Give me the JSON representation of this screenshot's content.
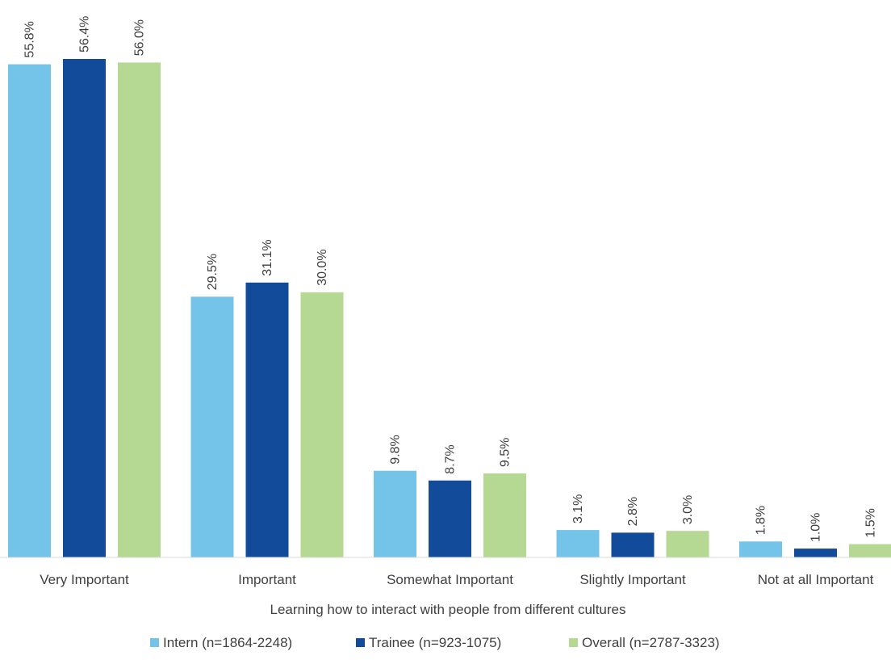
{
  "chart_data": {
    "type": "bar",
    "xlabel": "Learning how to interact with people from different cultures",
    "ylabel": "",
    "title": "",
    "ylim": [
      0,
      60
    ],
    "grid": false,
    "legend_position": "bottom",
    "categories": [
      "Very Important",
      "Important",
      "Somewhat Important",
      "Slightly Important",
      "Not at all Important"
    ],
    "series": [
      {
        "name": "Intern (n=1864-2248)",
        "color": "#74C3E8",
        "values": [
          55.8,
          29.5,
          9.8,
          3.1,
          1.8
        ],
        "labels": [
          "55.8%",
          "29.5%",
          "9.8%",
          "3.1%",
          "1.8%"
        ]
      },
      {
        "name": "Trainee (n=923-1075)",
        "color": "#124B9A",
        "values": [
          56.4,
          31.1,
          8.7,
          2.8,
          1.0
        ],
        "labels": [
          "56.4%",
          "31.1%",
          "8.7%",
          "2.8%",
          "1.0%"
        ]
      },
      {
        "name": "Overall (n=2787-3323)",
        "color": "#B5D992",
        "values": [
          56.0,
          30.0,
          9.5,
          3.0,
          1.5
        ],
        "labels": [
          "56.0%",
          "30.0%",
          "9.5%",
          "3.0%",
          "1.5%"
        ]
      }
    ]
  }
}
